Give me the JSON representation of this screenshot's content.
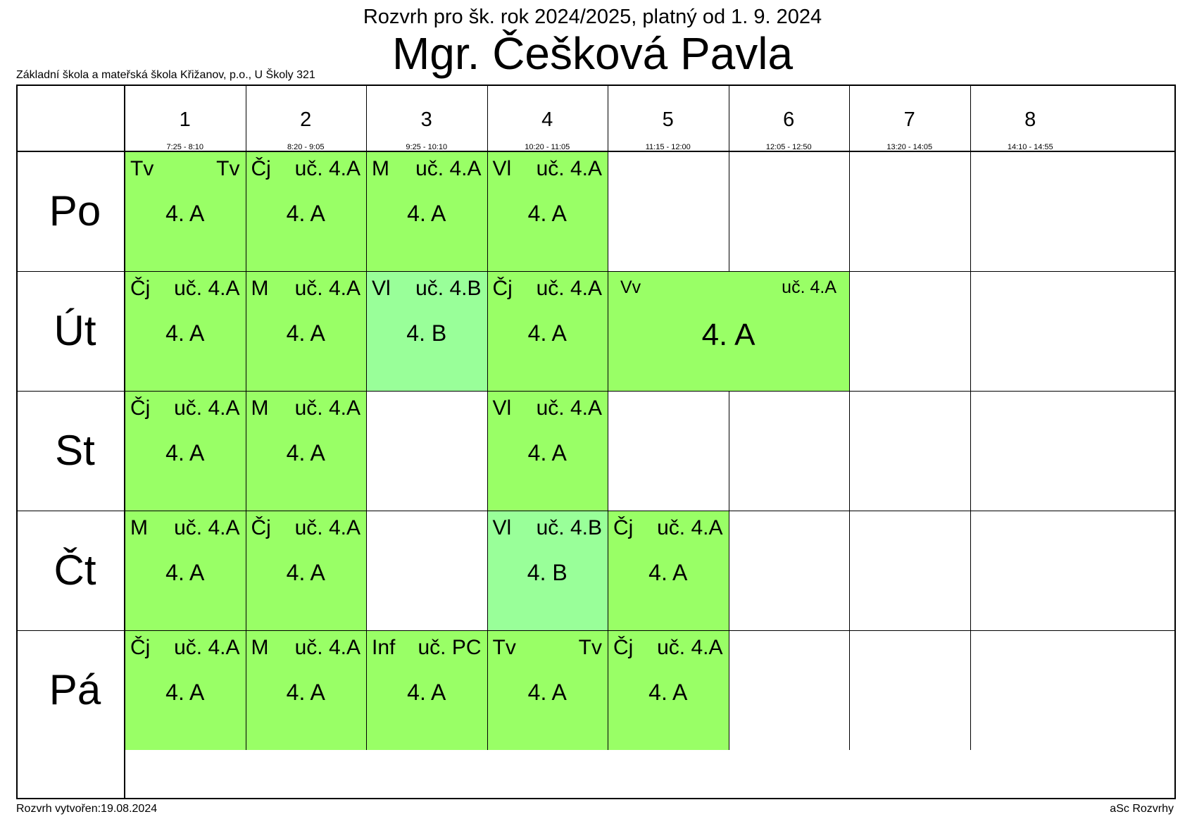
{
  "header": {
    "subtitle": "Rozvrh pro šk. rok 2024/2025, platný od 1. 9. 2024",
    "teacher": "Mgr. Češková Pavla",
    "school": "Základní škola a mateřská škola Křižanov, p.o., U Školy 321"
  },
  "footer": {
    "created": "Rozvrh vytvořen:19.08.2024",
    "software": "aSc Rozvrhy"
  },
  "colors": {
    "class_4A": "#99ff66",
    "class_4B": "#99ff99",
    "empty": "#ffffff",
    "border": "#000000"
  },
  "periods": [
    {
      "num": "1",
      "time": "7:25 - 8:10"
    },
    {
      "num": "2",
      "time": "8:20 - 9:05"
    },
    {
      "num": "3",
      "time": "9:25 - 10:10"
    },
    {
      "num": "4",
      "time": "10:20 - 11:05"
    },
    {
      "num": "5",
      "time": "11:15 - 12:00"
    },
    {
      "num": "6",
      "time": "12:05 - 12:50"
    },
    {
      "num": "7",
      "time": "13:20 - 14:05"
    },
    {
      "num": "8",
      "time": "14:10 - 14:55"
    }
  ],
  "days": [
    "Po",
    "Út",
    "St",
    "Čt",
    "Pá"
  ],
  "lessons": [
    {
      "day": 0,
      "period": 1,
      "span": 1,
      "subject": "Tv",
      "room": "Tv",
      "class": "4. A",
      "color": "class_4A"
    },
    {
      "day": 0,
      "period": 2,
      "span": 1,
      "subject": "Čj",
      "room": "uč. 4.A",
      "class": "4. A",
      "color": "class_4A"
    },
    {
      "day": 0,
      "period": 3,
      "span": 1,
      "subject": "M",
      "room": "uč. 4.A",
      "class": "4. A",
      "color": "class_4A"
    },
    {
      "day": 0,
      "period": 4,
      "span": 1,
      "subject": "Vl",
      "room": "uč. 4.A",
      "class": "4. A",
      "color": "class_4A"
    },
    {
      "day": 1,
      "period": 1,
      "span": 1,
      "subject": "Čj",
      "room": "uč. 4.A",
      "class": "4. A",
      "color": "class_4A"
    },
    {
      "day": 1,
      "period": 2,
      "span": 1,
      "subject": "M",
      "room": "uč. 4.A",
      "class": "4. A",
      "color": "class_4A"
    },
    {
      "day": 1,
      "period": 3,
      "span": 1,
      "subject": "Vl",
      "room": "uč. 4.B",
      "class": "4. B",
      "color": "class_4B"
    },
    {
      "day": 1,
      "period": 4,
      "span": 1,
      "subject": "Čj",
      "room": "uč. 4.A",
      "class": "4. A",
      "color": "class_4A"
    },
    {
      "day": 1,
      "period": 5,
      "span": 2,
      "subject": "Vv",
      "room": "uč. 4.A",
      "class": "4. A",
      "color": "class_4A"
    },
    {
      "day": 2,
      "period": 1,
      "span": 1,
      "subject": "Čj",
      "room": "uč. 4.A",
      "class": "4. A",
      "color": "class_4A"
    },
    {
      "day": 2,
      "period": 2,
      "span": 1,
      "subject": "M",
      "room": "uč. 4.A",
      "class": "4. A",
      "color": "class_4A"
    },
    {
      "day": 2,
      "period": 4,
      "span": 1,
      "subject": "Vl",
      "room": "uč. 4.A",
      "class": "4. A",
      "color": "class_4A"
    },
    {
      "day": 3,
      "period": 1,
      "span": 1,
      "subject": "M",
      "room": "uč. 4.A",
      "class": "4. A",
      "color": "class_4A"
    },
    {
      "day": 3,
      "period": 2,
      "span": 1,
      "subject": "Čj",
      "room": "uč. 4.A",
      "class": "4. A",
      "color": "class_4A"
    },
    {
      "day": 3,
      "period": 4,
      "span": 1,
      "subject": "Vl",
      "room": "uč. 4.B",
      "class": "4. B",
      "color": "class_4B"
    },
    {
      "day": 3,
      "period": 5,
      "span": 1,
      "subject": "Čj",
      "room": "uč. 4.A",
      "class": "4. A",
      "color": "class_4A"
    },
    {
      "day": 4,
      "period": 1,
      "span": 1,
      "subject": "Čj",
      "room": "uč. 4.A",
      "class": "4. A",
      "color": "class_4A"
    },
    {
      "day": 4,
      "period": 2,
      "span": 1,
      "subject": "M",
      "room": "uč. 4.A",
      "class": "4. A",
      "color": "class_4A"
    },
    {
      "day": 4,
      "period": 3,
      "span": 1,
      "subject": "Inf",
      "room": "uč. PC",
      "class": "4. A",
      "color": "class_4A"
    },
    {
      "day": 4,
      "period": 4,
      "span": 1,
      "subject": "Tv",
      "room": "Tv",
      "class": "4. A",
      "color": "class_4A"
    },
    {
      "day": 4,
      "period": 5,
      "span": 1,
      "subject": "Čj",
      "room": "uč. 4.A",
      "class": "4. A",
      "color": "class_4A"
    }
  ]
}
